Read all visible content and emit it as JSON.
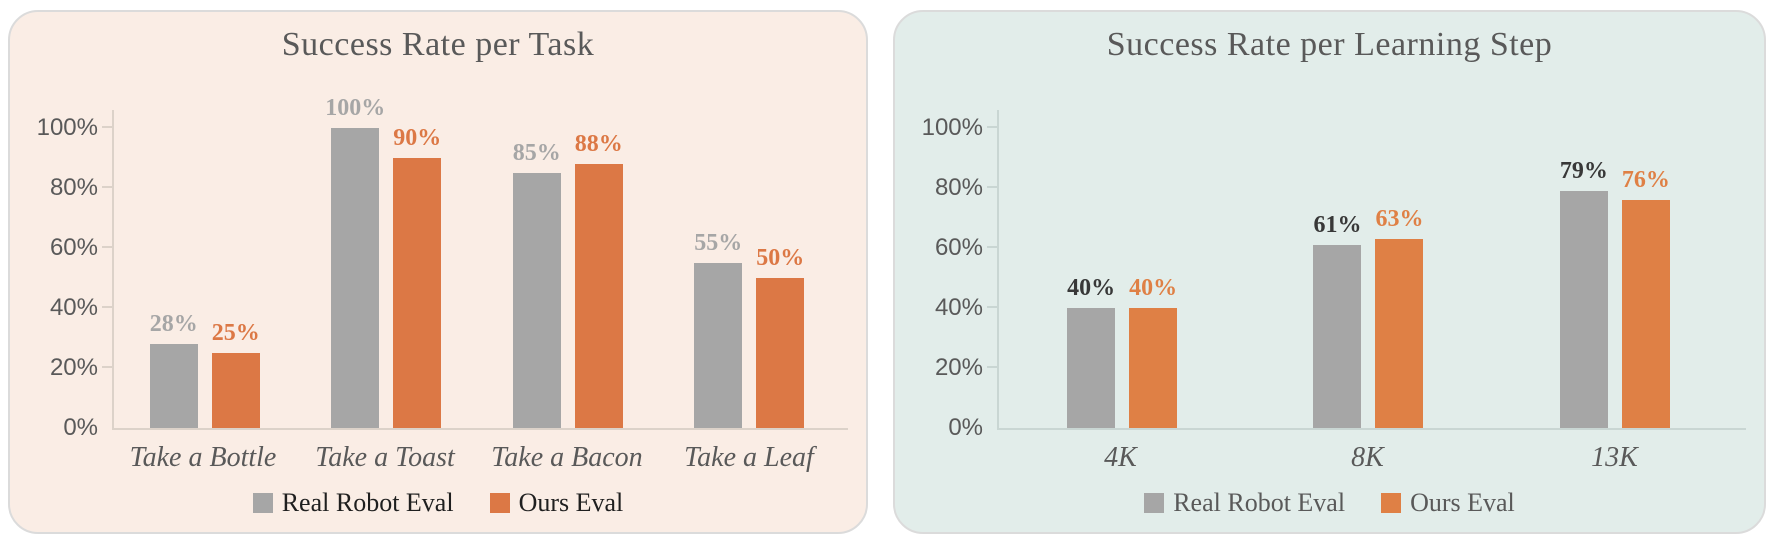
{
  "page": {
    "background": "#ffffff"
  },
  "chart_data": [
    {
      "type": "bar",
      "title": "Success Rate per Task",
      "categories": [
        "Take a Bottle",
        "Take a Toast",
        "Take a Bacon",
        "Take a Leaf"
      ],
      "series": [
        {
          "name": "Real Robot Eval",
          "color": "#A6A6A6",
          "label_color": "#A6A6A6",
          "values": [
            28,
            100,
            85,
            55
          ],
          "labels": [
            "28%",
            "100%",
            "85%",
            "55%"
          ]
        },
        {
          "name": "Ours Eval",
          "color": "#DC7845",
          "label_color": "#DC7845",
          "values": [
            25,
            90,
            88,
            50
          ],
          "labels": [
            "25%",
            "90%",
            "88%",
            "50%"
          ]
        }
      ],
      "ylim": [
        0,
        100
      ],
      "ytick_values": [
        0,
        20,
        40,
        60,
        80,
        100
      ],
      "yticks": [
        "0%",
        "20%",
        "40%",
        "60%",
        "80%",
        "100%"
      ],
      "grid": false,
      "legend_position": "bottom",
      "style": {
        "card_background": "#FAEDE5",
        "card_border": "#DBDBDB",
        "title_color": "#595959",
        "axis_color": "#DCD2C9",
        "tick_label_color": "#595959",
        "category_label_color": "#595959",
        "legend_text_color": "#1F1F1F"
      }
    },
    {
      "type": "bar",
      "title": "Success Rate per Learning Step",
      "categories": [
        "4K",
        "8K",
        "13K"
      ],
      "series": [
        {
          "name": "Real Robot Eval",
          "color": "#A6A6A6",
          "label_color": "#383838",
          "values": [
            40,
            61,
            79
          ],
          "labels": [
            "40%",
            "61%",
            "79%"
          ]
        },
        {
          "name": "Ours Eval",
          "color": "#DF8045",
          "label_color": "#DF8045",
          "values": [
            40,
            63,
            76
          ],
          "labels": [
            "40%",
            "63%",
            "76%"
          ]
        }
      ],
      "ylim": [
        0,
        100
      ],
      "ytick_values": [
        0,
        20,
        40,
        60,
        80,
        100
      ],
      "yticks": [
        "0%",
        "20%",
        "40%",
        "60%",
        "80%",
        "100%"
      ],
      "grid": false,
      "legend_position": "bottom",
      "style": {
        "card_background": "#E2EDEA",
        "card_border": "#DBDBDB",
        "title_color": "#595959",
        "axis_color": "#C9D6D3",
        "tick_label_color": "#595959",
        "category_label_color": "#595959",
        "legend_text_color": "#595959"
      }
    }
  ]
}
